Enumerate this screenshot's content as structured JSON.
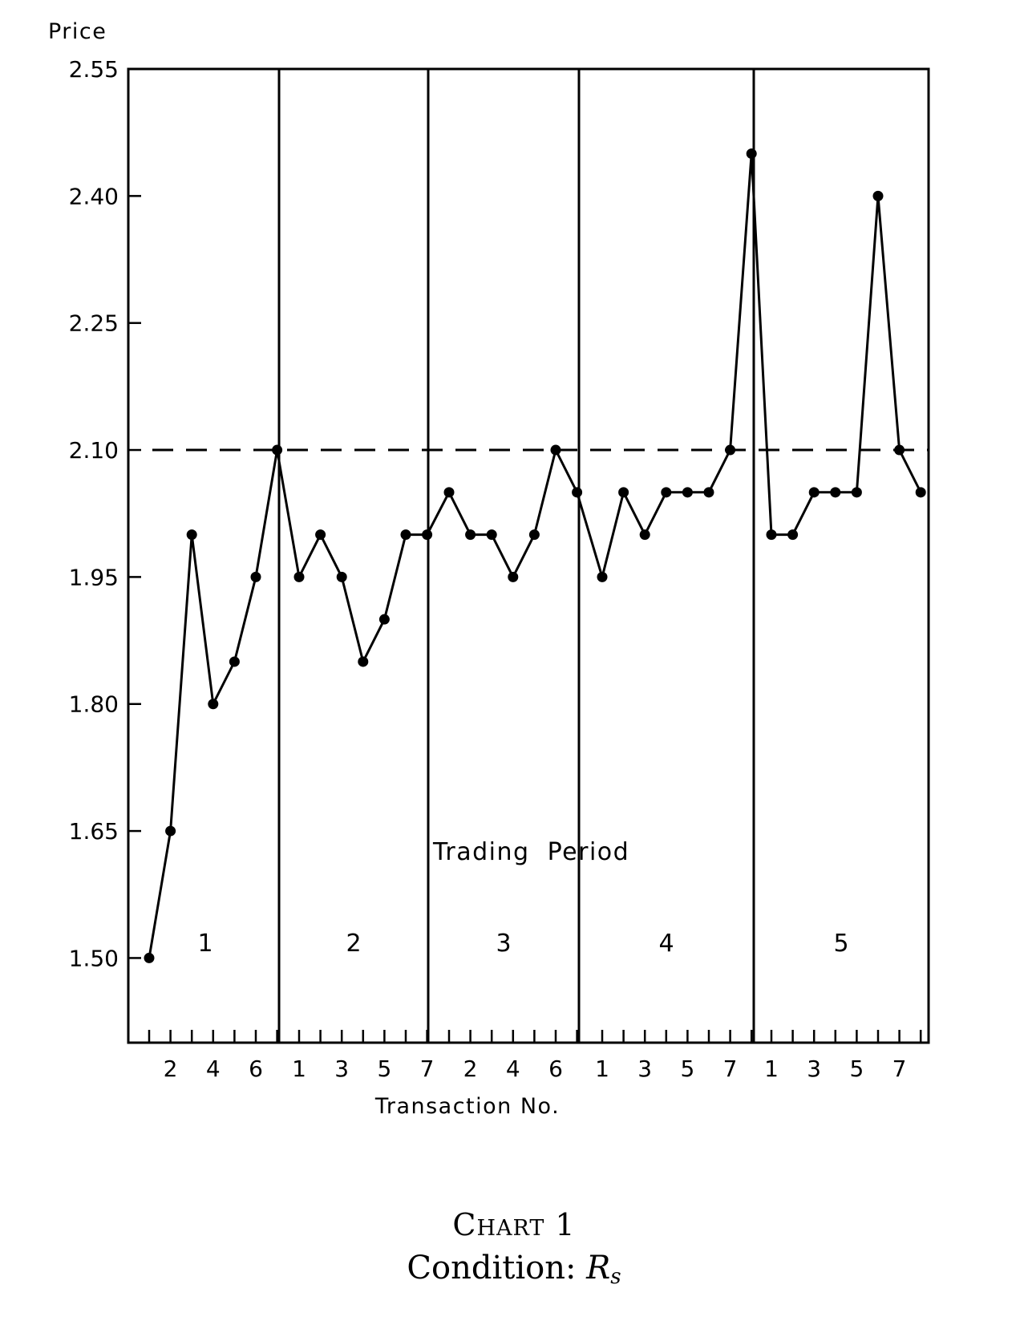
{
  "chart_data": {
    "type": "line",
    "ylabel": "Price",
    "xlabel": "Transaction No.",
    "ylim": [
      1.4,
      2.55
    ],
    "yticks": [
      1.5,
      1.65,
      1.8,
      1.95,
      2.1,
      2.25,
      2.4,
      2.55
    ],
    "ytick_labels": [
      "1.50",
      "1.65",
      "1.80",
      "1.95",
      "2.10",
      "2.25",
      "2.40",
      "2.55"
    ],
    "reference_line": {
      "y": 2.1,
      "style": "dashed"
    },
    "grid": false,
    "annotation": "Trading  Period",
    "periods": [
      {
        "label": "1",
        "x": [
          1,
          2,
          3,
          4,
          5,
          6,
          7
        ],
        "y": [
          1.5,
          1.65,
          2.0,
          1.8,
          1.85,
          1.95,
          2.1
        ],
        "tick_labels": [
          "",
          "2",
          "",
          "4",
          "",
          "6",
          ""
        ]
      },
      {
        "label": "2",
        "x": [
          1,
          2,
          3,
          4,
          5,
          6,
          7
        ],
        "y": [
          1.95,
          2.0,
          1.95,
          1.85,
          1.9,
          2.0,
          2.0
        ],
        "tick_labels": [
          "1",
          "",
          "3",
          "",
          "5",
          "",
          "7"
        ]
      },
      {
        "label": "3",
        "x": [
          1,
          2,
          3,
          4,
          5,
          6,
          7
        ],
        "y": [
          2.05,
          2.0,
          2.0,
          1.95,
          2.0,
          2.1,
          2.05
        ],
        "tick_labels": [
          "",
          "2",
          "",
          "4",
          "",
          "6",
          ""
        ]
      },
      {
        "label": "4",
        "x": [
          1,
          2,
          3,
          4,
          5,
          6,
          7,
          8
        ],
        "y": [
          1.95,
          2.05,
          2.0,
          2.05,
          2.05,
          2.05,
          2.1,
          2.45
        ],
        "tick_labels": [
          "1",
          "",
          "3",
          "",
          "5",
          "",
          "7",
          ""
        ]
      },
      {
        "label": "5",
        "x": [
          1,
          2,
          3,
          4,
          5,
          6,
          7,
          8
        ],
        "y": [
          2.0,
          2.0,
          2.05,
          2.05,
          2.05,
          2.4,
          2.1,
          2.05
        ],
        "tick_labels": [
          "1",
          "",
          "3",
          "",
          "5",
          "",
          "7",
          ""
        ]
      }
    ]
  },
  "caption": {
    "title": "Chart 1",
    "condition_label": "Condition: ",
    "condition_symbol": "R",
    "condition_subscript": "s"
  }
}
